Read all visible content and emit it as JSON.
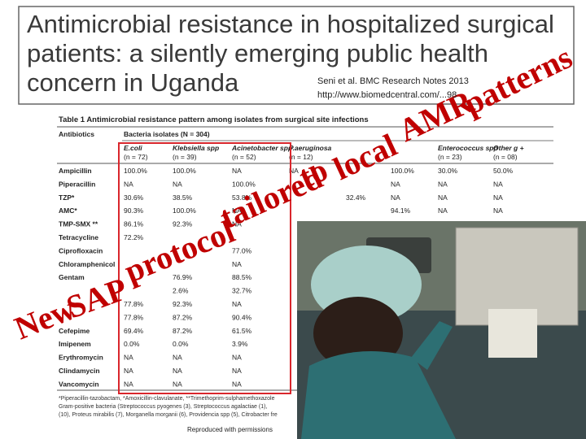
{
  "header": {
    "title_lines": [
      "Antimicrobial resistance in hospitalized surgical",
      "patients: a silently emerging public health",
      "concern in Uganda"
    ],
    "citation_lines": [
      "Seni et al. BMC Research Notes 2013",
      "http://www.biomedcentral.com/...98"
    ]
  },
  "table": {
    "caption": "Table 1 Antimicrobial resistance pattern among isolates from surgical site infections",
    "top_headers": [
      "Antibiotics",
      "Bacteria isolates (N = 304)"
    ],
    "columns": [
      null,
      "E.coli",
      "Klebsiella spp",
      "Acinetobacter spp",
      "P.aeruginosa",
      null,
      null,
      "Enterococcus spp",
      "Other g +"
    ],
    "counts": [
      null,
      "(n = 72)",
      "(n = 39)",
      "(n = 52)",
      "(n = 12)",
      null,
      null,
      "(n = 23)",
      "(n = 08)"
    ],
    "rows": [
      [
        "Ampicillin",
        "100.0%",
        "100.0%",
        "NA",
        "NA",
        null,
        "100.0%",
        "30.0%",
        "50.0%"
      ],
      [
        "Piperacillin",
        "NA",
        "NA",
        "100.0%",
        null,
        null,
        "NA",
        "NA",
        "NA"
      ],
      [
        "TZP*",
        "30.6%",
        "38.5%",
        "53.8%",
        null,
        "32.4%",
        "NA",
        "NA",
        "NA"
      ],
      [
        "AMC*",
        "90.3%",
        "100.0%",
        "NA",
        null,
        null,
        "94.1%",
        "NA",
        "NA"
      ],
      [
        "TMP-SMX **",
        "86.1%",
        "92.3%",
        "NA",
        null,
        null,
        null,
        null,
        null
      ],
      [
        "Tetracycline",
        "72.2%",
        null,
        null,
        null,
        null,
        null,
        null,
        null
      ],
      [
        "Ciprofloxacin",
        null,
        null,
        "77.0%",
        null,
        null,
        null,
        null,
        null
      ],
      [
        "Chloramphenicol",
        null,
        null,
        "NA",
        null,
        null,
        null,
        null,
        null
      ],
      [
        "Gentam",
        null,
        "76.9%",
        "88.5%",
        null,
        null,
        null,
        null,
        null
      ],
      [
        null,
        null,
        "2.6%",
        "32.7%",
        null,
        null,
        null,
        null,
        null
      ],
      [
        null,
        "77.8%",
        "92.3%",
        "NA",
        null,
        null,
        null,
        null,
        null
      ],
      [
        null,
        "77.8%",
        "87.2%",
        "90.4%",
        null,
        null,
        null,
        null,
        null
      ],
      [
        "Cefepime",
        "69.4%",
        "87.2%",
        "61.5%",
        null,
        null,
        null,
        null,
        null
      ],
      [
        "Imipenem",
        "0.0%",
        "0.0%",
        "3.9%",
        null,
        null,
        null,
        null,
        null
      ],
      [
        "Erythromycin",
        "NA",
        "NA",
        "NA",
        null,
        null,
        null,
        null,
        null
      ],
      [
        "Clindamycin",
        "NA",
        "NA",
        "NA",
        null,
        null,
        null,
        null,
        null
      ],
      [
        "Vancomycin",
        "NA",
        "NA",
        "NA",
        null,
        null,
        null,
        null,
        null
      ]
    ],
    "footnotes": [
      "*Piperacillin-tazobactam, *Amoxicillin-clavulanate, **Trimethoprim-sulphamethoxazole",
      "Gram-positive bacteria (Streptococcus pyogenes (3), Streptococcus agalactiae (1),",
      "(10), Proteus mirabilis (7), Morganella morganii (6), Providencia spp (5), Citrobacter fre"
    ]
  },
  "overlay": {
    "words": [
      "New",
      "SAP",
      "protocol",
      "tailored",
      "to",
      "local",
      "AMR",
      "patterns"
    ]
  },
  "credit": "Reproduced with permissions"
}
